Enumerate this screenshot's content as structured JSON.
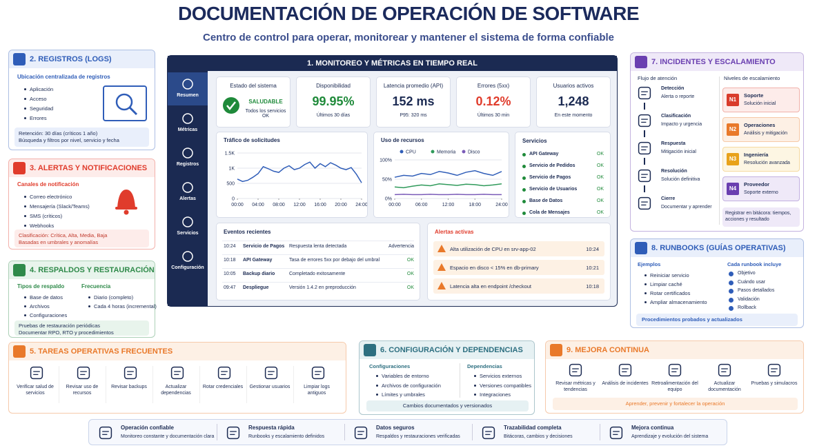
{
  "header": {
    "title": "DOCUMENTACIÓN DE OPERACIÓN DE SOFTWARE",
    "subtitle": "Centro de control para operar, monitorear y mantener el sistema de forma confiable"
  },
  "logs": {
    "title": "2. REGISTROS (LOGS)",
    "heading": "Ubicación centralizada de registros",
    "items": [
      "Aplicación",
      "Acceso",
      "Seguridad",
      "Errores"
    ],
    "note": [
      "Retención: 30 días (críticos 1 año)",
      "Búsqueda y filtros por nivel, servicio y fecha"
    ]
  },
  "alerts": {
    "title": "3. ALERTAS Y NOTIFICACIONES",
    "heading": "Canales de notificación",
    "items": [
      "Correo electrónico",
      "Mensajería (Slack/Teams)",
      "SMS (críticos)",
      "Webhooks"
    ],
    "note": [
      "Clasificación: Crítica, Alta, Media, Baja",
      "Basadas en umbrales y anomalías"
    ]
  },
  "backups": {
    "title": "4. RESPALDOS Y RESTAURACIÓN",
    "types_heading": "Tipos de respaldo",
    "types": [
      "Base de datos",
      "Archivos",
      "Configuraciones"
    ],
    "freq_heading": "Frecuencia",
    "freq": [
      "Diario (completo)",
      "Cada 4 horas (incremental)"
    ],
    "note": [
      "Pruebas de restauración periódicas",
      "Documentar RPO, RTO y procedimientos"
    ]
  },
  "monitor": {
    "title": "1. MONITOREO Y MÉTRICAS EN TIEMPO REAL",
    "nav": [
      "Resumen",
      "Métricas",
      "Registros",
      "Alertas",
      "Servicios",
      "Configuración"
    ],
    "kpis": [
      {
        "label": "Estado del sistema",
        "value": "SALUDABLE",
        "sub": "Todos los servicios OK"
      },
      {
        "label": "Disponibilidad",
        "value": "99.95%",
        "sub": "Últimos 30 días"
      },
      {
        "label": "Latencia promedio (API)",
        "value": "152 ms",
        "sub": "P95: 320 ms"
      },
      {
        "label": "Errores (5xx)",
        "value": "0.12%",
        "sub": "Últimos 30 min"
      },
      {
        "label": "Usuarios activos",
        "value": "1,248",
        "sub": "En este momento"
      }
    ],
    "services_title": "Servicios",
    "services": [
      {
        "name": "API Gateway",
        "status": "OK"
      },
      {
        "name": "Servicio de Pedidos",
        "status": "OK"
      },
      {
        "name": "Servicio de Pagos",
        "status": "OK"
      },
      {
        "name": "Servicio de Usuarios",
        "status": "OK"
      },
      {
        "name": "Base de Datos",
        "status": "OK"
      },
      {
        "name": "Cola de Mensajes",
        "status": "OK"
      }
    ],
    "events_title": "Eventos recientes",
    "events": [
      [
        "10:24",
        "Servicio de Pagos",
        "Respuesta lenta detectada",
        "Advertencia"
      ],
      [
        "10:18",
        "API Gateway",
        "Tasa de errores 5xx por debajo del umbral",
        "OK"
      ],
      [
        "10:05",
        "Backup diario",
        "Completado exitosamente",
        "OK"
      ],
      [
        "09:47",
        "Despliegue",
        "Versión 1.4.2 en preproducción",
        "OK"
      ]
    ],
    "active_title": "Alertas activas",
    "active": [
      {
        "text": "Alta utilización de CPU en srv-app-02",
        "time": "10:24"
      },
      {
        "text": "Espacio en disco < 15% en db-primary",
        "time": "10:21"
      },
      {
        "text": "Latencia alta en endpoint /checkout",
        "time": "10:18"
      }
    ]
  },
  "chart_data": [
    {
      "type": "line",
      "title": "Tráfico de solicitudes",
      "x": [
        0,
        1,
        2,
        3,
        4,
        5,
        6,
        7,
        8,
        9,
        10,
        11,
        12,
        13,
        14,
        15,
        16,
        17,
        18,
        19,
        20,
        21,
        22,
        23,
        24
      ],
      "series": [
        {
          "color": "#2f5db8",
          "values": [
            640,
            560,
            600,
            700,
            820,
            1050,
            980,
            900,
            860,
            1000,
            1080,
            950,
            1000,
            1120,
            1200,
            1000,
            1150,
            1050,
            1180,
            1100,
            1000,
            950,
            1020,
            800,
            520
          ]
        }
      ],
      "xlim": [
        0,
        24
      ],
      "xticks": [
        {
          "value": 0,
          "label": "00:00"
        },
        {
          "value": 4,
          "label": "04:00"
        },
        {
          "value": 8,
          "label": "08:00"
        },
        {
          "value": 12,
          "label": "12:00"
        },
        {
          "value": 16,
          "label": "16:00"
        },
        {
          "value": 20,
          "label": "20:00"
        },
        {
          "value": 24,
          "label": "24:00"
        }
      ],
      "ylim": [
        0,
        1500
      ],
      "yticks": [
        0,
        500,
        {
          "value": 1000,
          "label": "1K"
        },
        {
          "value": 1500,
          "label": "1.5K"
        }
      ]
    },
    {
      "type": "line",
      "title": "Uso de recursos",
      "x": [
        0,
        2,
        4,
        6,
        8,
        10,
        12,
        14,
        16,
        18,
        20,
        22,
        24
      ],
      "series": [
        {
          "name": "CPU",
          "color": "#2f5db8",
          "values": [
            55,
            60,
            58,
            65,
            62,
            70,
            66,
            60,
            68,
            72,
            65,
            60,
            70
          ]
        },
        {
          "name": "Memoria",
          "color": "#2f9a5a",
          "values": [
            30,
            28,
            32,
            35,
            33,
            38,
            36,
            34,
            37,
            36,
            33,
            35,
            38
          ]
        },
        {
          "name": "Disco",
          "color": "#7a5bb8",
          "values": [
            10,
            11,
            10,
            10,
            11,
            10,
            10,
            11,
            10,
            10,
            11,
            10,
            10
          ]
        }
      ],
      "xlim": [
        0,
        24
      ],
      "xticks": [
        {
          "value": 0,
          "label": "00:00"
        },
        {
          "value": 6,
          "label": "06:00"
        },
        {
          "value": 12,
          "label": "12:00"
        },
        {
          "value": 18,
          "label": "18:00"
        },
        {
          "value": 24,
          "label": "24:00"
        }
      ],
      "ylim": [
        0,
        100
      ],
      "yticks": [
        {
          "value": 0,
          "label": "0%"
        },
        {
          "value": 50,
          "label": "50%"
        },
        {
          "value": 100,
          "label": "100%"
        }
      ]
    }
  ],
  "incidents": {
    "title": "7. INCIDENTES Y ESCALAMIENTO",
    "flow_heading": "Flujo de atención",
    "flow": [
      {
        "title": "Detección",
        "sub": "Alerta o reporte"
      },
      {
        "title": "Clasificación",
        "sub": "Impacto y urgencia"
      },
      {
        "title": "Respuesta",
        "sub": "Mitigación inicial"
      },
      {
        "title": "Resolución",
        "sub": "Solución definitiva"
      },
      {
        "title": "Cierre",
        "sub": "Documentar y aprender"
      }
    ],
    "levels_heading": "Niveles de escalamiento",
    "levels": [
      {
        "code": "N1",
        "title": "Soporte",
        "sub": "Solución inicial"
      },
      {
        "code": "N2",
        "title": "Operaciones",
        "sub": "Análisis y mitigación"
      },
      {
        "code": "N3",
        "title": "Ingeniería",
        "sub": "Resolución avanzada"
      },
      {
        "code": "N4",
        "title": "Proveedor",
        "sub": "Soporte externo"
      }
    ],
    "note": "Registrar en bitácora: tiempos, acciones y resultado"
  },
  "runbooks": {
    "title": "8. RUNBOOKS (GUÍAS OPERATIVAS)",
    "examples_heading": "Ejemplos",
    "examples": [
      "Reiniciar servicio",
      "Limpiar caché",
      "Rotar certificados",
      "Ampliar almacenamiento"
    ],
    "includes_heading": "Cada runbook incluye",
    "includes": [
      "Objetivo",
      "Cuándo usar",
      "Pasos detallados",
      "Validación",
      "Rollback"
    ],
    "note": "Procedimientos probados y actualizados"
  },
  "tasks": {
    "title": "5. TAREAS OPERATIVAS FRECUENTES",
    "items": [
      "Verificar salud de servicios",
      "Revisar uso de recursos",
      "Revisar backups",
      "Actualizar dependencias",
      "Rotar credenciales",
      "Gestionar usuarios",
      "Limpiar logs antiguos"
    ]
  },
  "config": {
    "title": "6. CONFIGURACIÓN Y DEPENDENCIAS",
    "config_heading": "Configuraciones",
    "config": [
      "Variables de entorno",
      "Archivos de configuración",
      "Límites y umbrales"
    ],
    "deps_heading": "Dependencias",
    "deps": [
      "Servicios externos",
      "Versiones compatibles",
      "Integraciones"
    ],
    "note": "Cambios documentados y versionados"
  },
  "improvement": {
    "title": "9. MEJORA CONTINUA",
    "items": [
      "Revisar métricas y tendencias",
      "Análisis de incidentes",
      "Retroalimentación del equipo",
      "Actualizar documentación",
      "Pruebas y simulacros"
    ],
    "note": "Aprender, prevenir y fortalecer la operación"
  },
  "footer": [
    {
      "title": "Operación confiable",
      "sub": "Monitoreo constante y documentación clara"
    },
    {
      "title": "Respuesta rápida",
      "sub": "Runbooks y escalamiento definidos"
    },
    {
      "title": "Datos seguros",
      "sub": "Respaldos y restauraciones verificadas"
    },
    {
      "title": "Trazabilidad completa",
      "sub": "Bitácoras, cambios y decisiones"
    },
    {
      "title": "Mejora continua",
      "sub": "Aprendizaje y evolución del sistema"
    }
  ]
}
